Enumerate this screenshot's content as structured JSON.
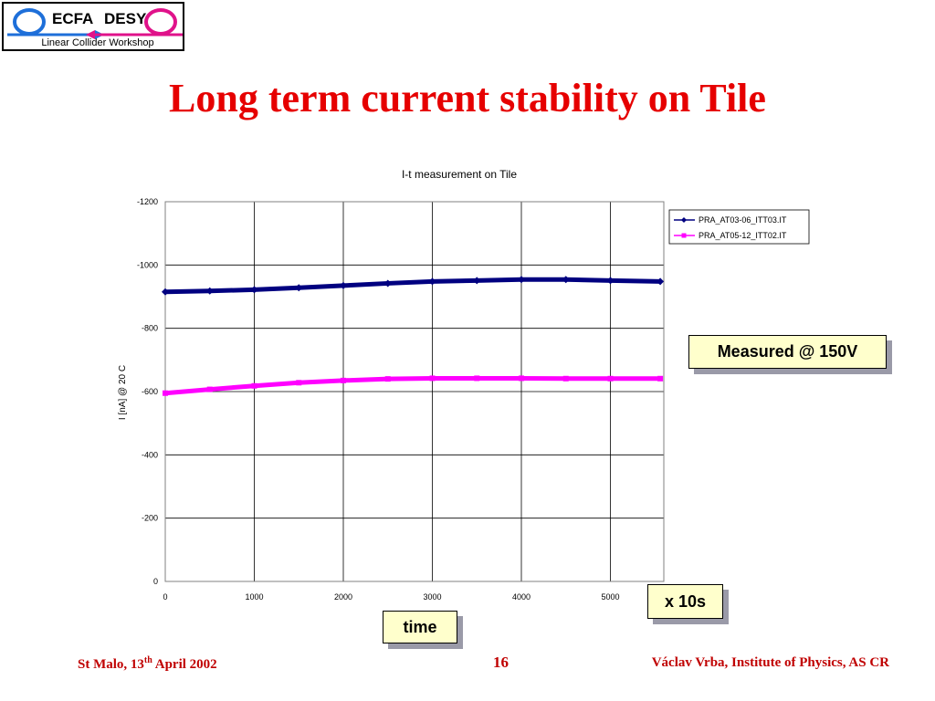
{
  "logo": {
    "left_text": "ECFA",
    "right_text": "DESY",
    "subtitle": "Linear Collider Workshop"
  },
  "slide": {
    "title": "Long term current stability on Tile"
  },
  "callouts": {
    "measured": "Measured @ 150V",
    "x_unit": "x 10s",
    "time": "time"
  },
  "footer": {
    "left_prefix": "St Malo, 13",
    "left_sup": "th",
    "left_suffix": " April 2002",
    "page": "16",
    "right": "Václav Vrba, Institute of Physics, AS CR"
  },
  "colors": {
    "title": "#e60000",
    "series1": "#000080",
    "series2": "#ff00ff",
    "footer": "#c00000",
    "callout_bg": "#ffffcc"
  },
  "chart_data": {
    "type": "line",
    "title": "I-t measurement on Tile",
    "xlabel": "",
    "ylabel": "I [nA] @ 20 C",
    "xlim": [
      0,
      5600
    ],
    "ylim": [
      -1200,
      0
    ],
    "y_inverted": true,
    "x_ticks": [
      0,
      1000,
      2000,
      3000,
      4000,
      5000
    ],
    "y_ticks": [
      -1200,
      -1000,
      -800,
      -600,
      -400,
      -200,
      0
    ],
    "grid": true,
    "legend_position": "top-right",
    "series": [
      {
        "name": "PRA_AT03-06_ITT03.IT",
        "color": "#000080",
        "marker": "diamond",
        "x": [
          0,
          500,
          1000,
          1500,
          2000,
          2500,
          3000,
          3500,
          4000,
          4500,
          5000,
          5560
        ],
        "y": [
          -915,
          -918,
          -922,
          -928,
          -935,
          -942,
          -948,
          -951,
          -954,
          -954,
          -951,
          -948
        ]
      },
      {
        "name": "PRA_AT05-12_ITT02.IT",
        "color": "#ff00ff",
        "marker": "square",
        "x": [
          0,
          500,
          1000,
          1500,
          2000,
          2500,
          3000,
          3500,
          4000,
          4500,
          5000,
          5560
        ],
        "y": [
          -595,
          -607,
          -618,
          -628,
          -635,
          -640,
          -642,
          -642,
          -642,
          -641,
          -641,
          -641
        ]
      }
    ]
  }
}
